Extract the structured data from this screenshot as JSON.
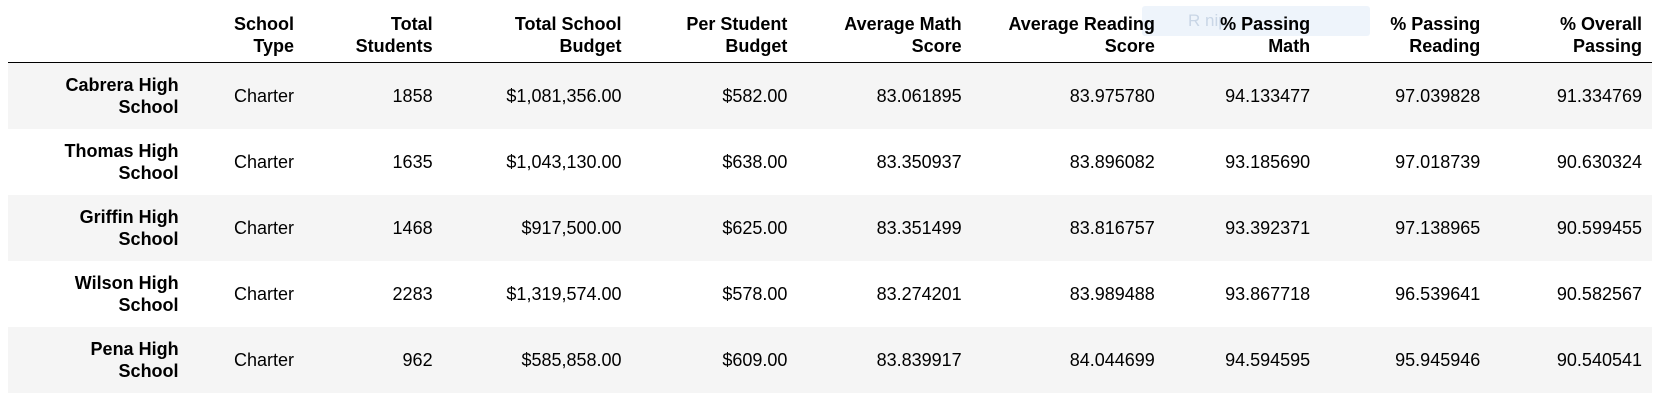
{
  "overlay": {
    "ghost_text": "R          nip"
  },
  "table": {
    "columns": [
      [
        "School",
        "Type"
      ],
      [
        "Total",
        "Students"
      ],
      [
        "Total School",
        "Budget"
      ],
      [
        "Per Student",
        "Budget"
      ],
      [
        "Average Math",
        "Score"
      ],
      [
        "Average Reading",
        "Score"
      ],
      [
        "% Passing",
        "Math"
      ],
      [
        "% Passing",
        "Reading"
      ],
      [
        "% Overall",
        "Passing"
      ]
    ],
    "rows": [
      {
        "name": [
          "Cabrera High",
          "School"
        ],
        "cells": [
          "Charter",
          "1858",
          "$1,081,356.00",
          "$582.00",
          "83.061895",
          "83.975780",
          "94.133477",
          "97.039828",
          "91.334769"
        ]
      },
      {
        "name": [
          "Thomas High",
          "School"
        ],
        "cells": [
          "Charter",
          "1635",
          "$1,043,130.00",
          "$638.00",
          "83.350937",
          "83.896082",
          "93.185690",
          "97.018739",
          "90.630324"
        ]
      },
      {
        "name": [
          "Griffin High",
          "School"
        ],
        "cells": [
          "Charter",
          "1468",
          "$917,500.00",
          "$625.00",
          "83.351499",
          "83.816757",
          "93.392371",
          "97.138965",
          "90.599455"
        ]
      },
      {
        "name": [
          "Wilson High",
          "School"
        ],
        "cells": [
          "Charter",
          "2283",
          "$1,319,574.00",
          "$578.00",
          "83.274201",
          "83.989488",
          "93.867718",
          "96.539641",
          "90.582567"
        ]
      },
      {
        "name": [
          "Pena High",
          "School"
        ],
        "cells": [
          "Charter",
          "962",
          "$585,858.00",
          "$609.00",
          "83.839917",
          "84.044699",
          "94.594595",
          "95.945946",
          "90.540541"
        ]
      }
    ]
  }
}
